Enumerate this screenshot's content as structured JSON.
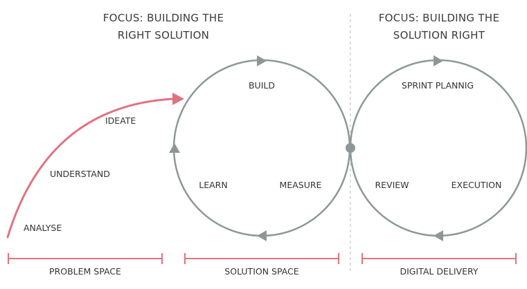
{
  "headings": {
    "left_line1": "FOCUS: BUILDING THE",
    "left_line2": "RIGHT SOLUTION",
    "right_line1": "FOCUS: BUILDING THE",
    "right_line2": "SOLUTION RIGHT"
  },
  "problem_stages": [
    "ANALYSE",
    "UNDERSTAND",
    "IDEATE"
  ],
  "solution_cycle": {
    "top": "BUILD",
    "left": "LEARN",
    "right": "MEASURE"
  },
  "delivery_cycle": {
    "top": "SPRINT PLANNIG",
    "left": "REVIEW",
    "right": "EXECUTION"
  },
  "spaces": [
    "PROBLEM SPACE",
    "SOLUTION SPACE",
    "DIGITAL DELIVERY"
  ],
  "colors": {
    "accent": "#e0737f",
    "loop": "#8c9898",
    "divider": "#b8b8b8",
    "text": "#333333"
  }
}
